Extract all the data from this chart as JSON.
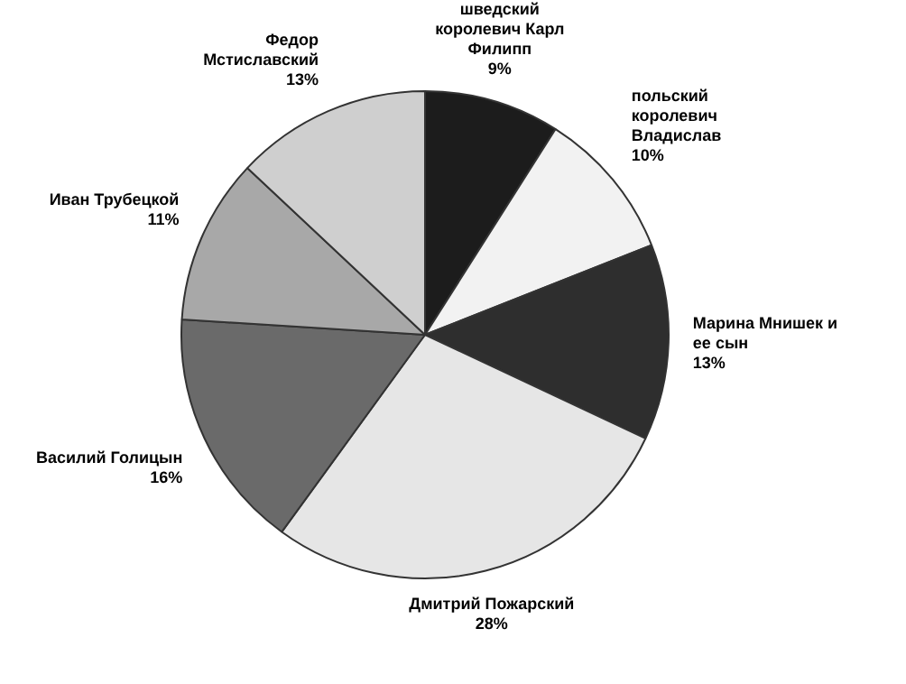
{
  "chart_data": {
    "type": "pie",
    "categories": [
      "шведский королевич Карл Филипп",
      "польский королевич Владислав",
      "Марина Мнишек и ее сын",
      "Дмитрий Пожарский",
      "Василий Голицын",
      "Иван Трубецкой",
      "Федор Мстиславский"
    ],
    "values": [
      9,
      10,
      13,
      28,
      16,
      11,
      13
    ],
    "colors": [
      "#1c1c1c",
      "#f2f2f2",
      "#2e2e2e",
      "#e6e6e6",
      "#6a6a6a",
      "#a8a8a8",
      "#cfcfcf"
    ],
    "value_labels": [
      "9%",
      "10%",
      "13%",
      "28%",
      "16%",
      "11%",
      "13%"
    ]
  }
}
